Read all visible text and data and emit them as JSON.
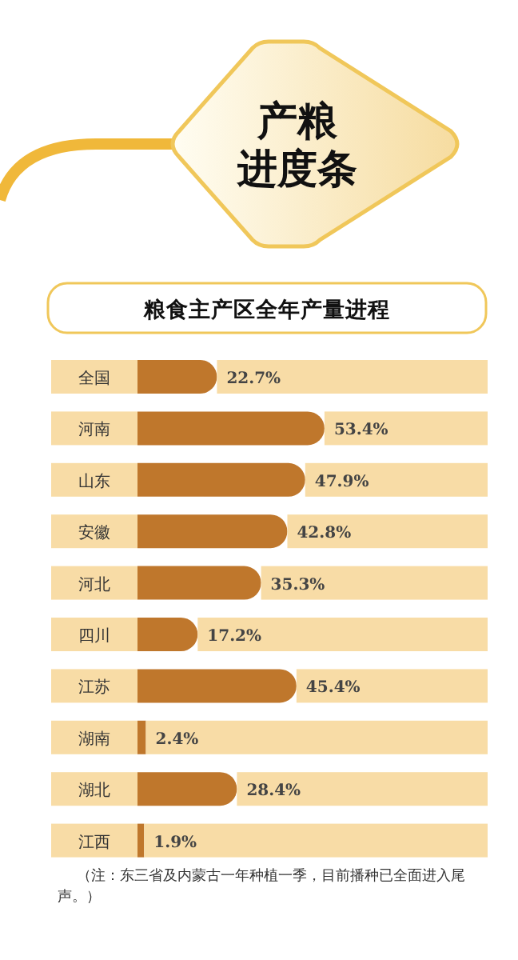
{
  "chart_data": {
    "type": "bar",
    "orientation": "horizontal",
    "stacked": true,
    "title": "产粮进度条",
    "subtitle": "粮食主产区全年产量进程",
    "categories": [
      "全国",
      "河南",
      "山东",
      "安徽",
      "河北",
      "四川",
      "江苏",
      "湖南",
      "湖北",
      "江西"
    ],
    "series": [
      {
        "color": "#bf772c",
        "values": [
          22.7,
          53.4,
          47.9,
          42.8,
          35.3,
          17.2,
          45.4,
          2.4,
          28.4,
          1.9
        ],
        "value_labels": [
          "22.7%",
          "53.4%",
          "47.9%",
          "42.8%",
          "35.3%",
          "17.2%",
          "45.4%",
          "2.4%",
          "28.4%",
          "1.9%"
        ]
      },
      {
        "color": "#f8dca6",
        "values": [
          77.3,
          46.6,
          52.1,
          57.2,
          64.7,
          82.8,
          54.6,
          97.6,
          71.6,
          98.1
        ]
      }
    ],
    "annotations": [
      "（注：东三省及内蒙古一年种植一季，目前播种已全面进入尾声。）"
    ]
  }
}
